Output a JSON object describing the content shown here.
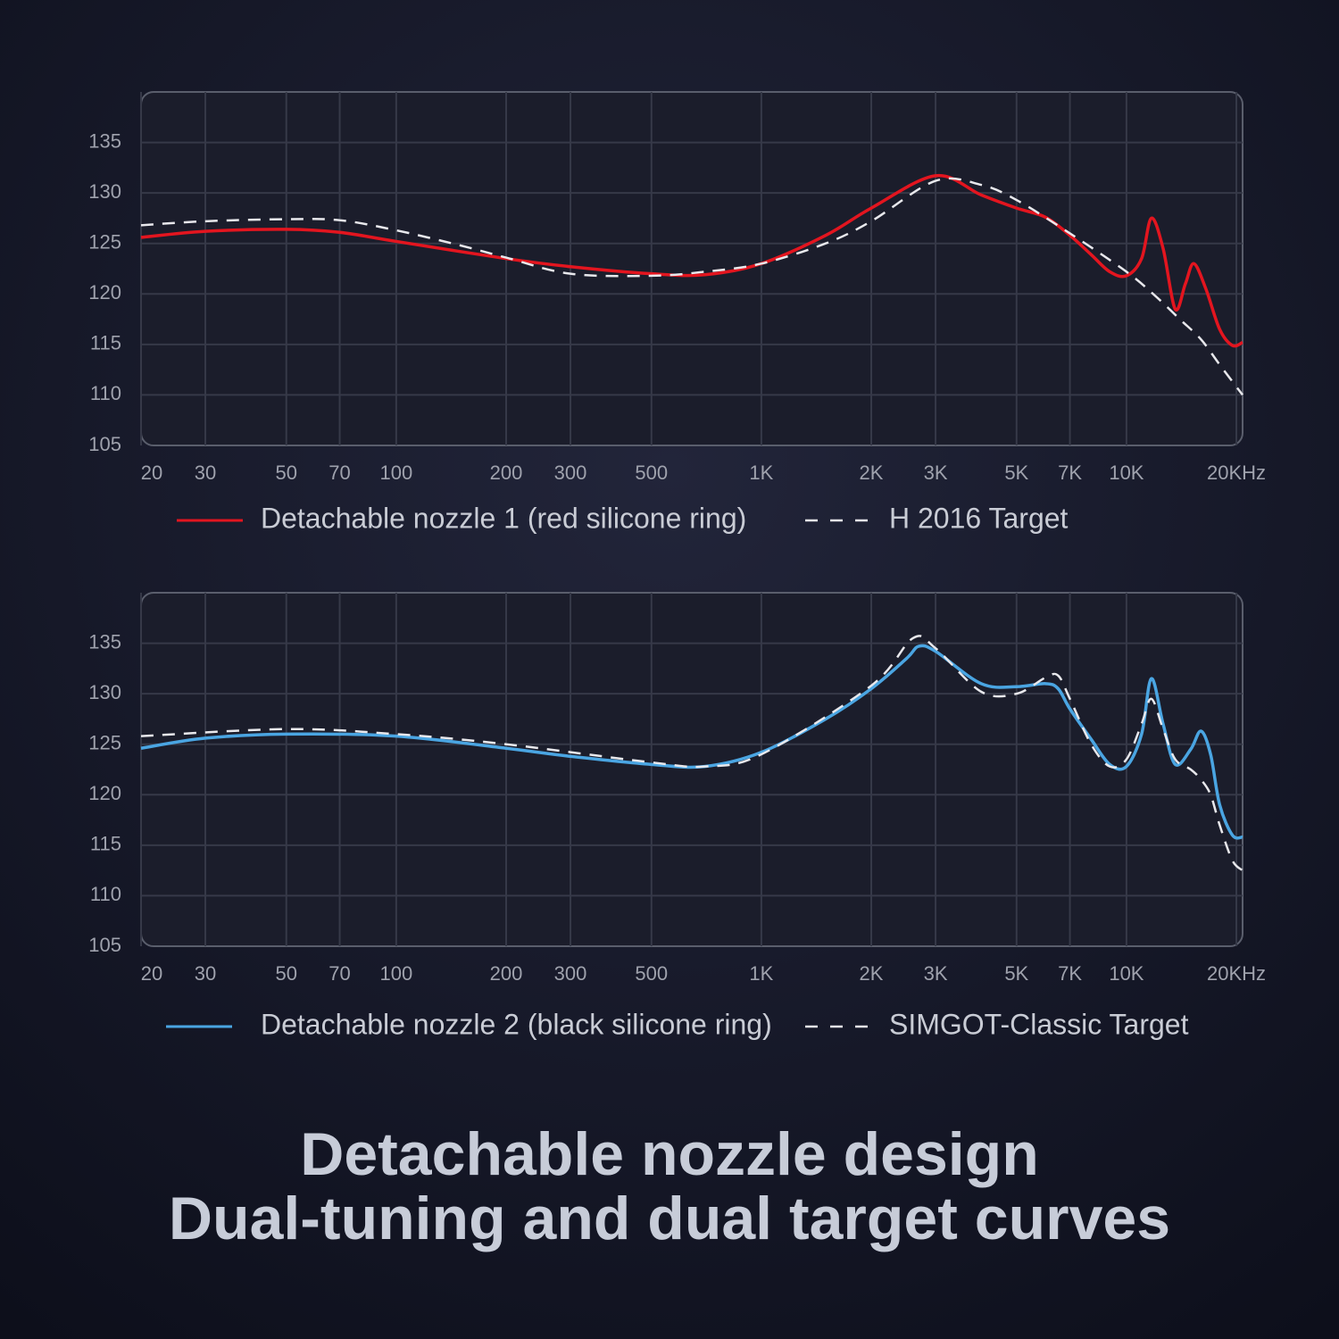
{
  "chart_data": [
    {
      "type": "line",
      "xscale": "log",
      "xlim": [
        20,
        20800
      ],
      "ylim": [
        105,
        140
      ],
      "grid": true,
      "xticks": [
        20,
        30,
        50,
        70,
        100,
        200,
        300,
        500,
        {
          "value": 1000,
          "label": "1K"
        },
        {
          "value": 2000,
          "label": "2K"
        },
        {
          "value": 3000,
          "label": "3K"
        },
        {
          "value": 5000,
          "label": "5K"
        },
        {
          "value": 7000,
          "label": "7K"
        },
        {
          "value": 10000,
          "label": "10K"
        },
        {
          "value": 20000,
          "label": "20KHz"
        }
      ],
      "yticks": [
        105,
        110,
        115,
        120,
        125,
        130,
        135
      ],
      "series": [
        {
          "name": "Detachable nozzle 1 (red silicone ring)",
          "color": "#e3151f",
          "style": "solid",
          "x": [
            20,
            30,
            50,
            70,
            100,
            200,
            300,
            500,
            700,
            1000,
            1500,
            2000,
            3000,
            4000,
            5000,
            6000,
            7000,
            8000,
            9000,
            10000,
            11000,
            11700,
            12600,
            13600,
            14500,
            15300,
            16500,
            18000,
            19500,
            20800
          ],
          "values": [
            125.6,
            126.2,
            126.4,
            126.1,
            125.2,
            123.5,
            122.7,
            122.0,
            121.9,
            123.0,
            125.8,
            128.5,
            131.7,
            129.8,
            128.5,
            127.6,
            125.8,
            123.9,
            122.2,
            121.8,
            123.5,
            127.5,
            124.5,
            118.5,
            121.0,
            123.0,
            120.5,
            116.5,
            114.9,
            115.2
          ]
        },
        {
          "name": "H 2016 Target",
          "color": "#e8e8ec",
          "style": "dashed",
          "x": [
            20,
            30,
            50,
            70,
            100,
            150,
            200,
            300,
            500,
            700,
            1000,
            1500,
            2000,
            3000,
            4000,
            5000,
            7000,
            10000,
            12000,
            14000,
            16000,
            18000,
            20800
          ],
          "values": [
            126.8,
            127.2,
            127.4,
            127.3,
            126.3,
            124.8,
            123.6,
            122.0,
            121.8,
            122.2,
            123.0,
            125.0,
            127.2,
            131.2,
            130.8,
            129.3,
            126.0,
            122.2,
            119.8,
            117.5,
            115.5,
            113.0,
            110.0
          ]
        }
      ]
    },
    {
      "type": "line",
      "xscale": "log",
      "xlim": [
        20,
        20800
      ],
      "ylim": [
        105,
        140
      ],
      "grid": true,
      "xticks": [
        20,
        30,
        50,
        70,
        100,
        200,
        300,
        500,
        {
          "value": 1000,
          "label": "1K"
        },
        {
          "value": 2000,
          "label": "2K"
        },
        {
          "value": 3000,
          "label": "3K"
        },
        {
          "value": 5000,
          "label": "5K"
        },
        {
          "value": 7000,
          "label": "7K"
        },
        {
          "value": 10000,
          "label": "10K"
        },
        {
          "value": 20000,
          "label": "20KHz"
        }
      ],
      "yticks": [
        105,
        110,
        115,
        120,
        125,
        130,
        135
      ],
      "series": [
        {
          "name": "Detachable nozzle 2 (black silicone ring)",
          "color": "#4aa5e2",
          "style": "solid",
          "x": [
            20,
            30,
            50,
            100,
            200,
            300,
            500,
            700,
            1000,
            1500,
            2000,
            2500,
            2700,
            3000,
            4000,
            5000,
            6000,
            6500,
            7000,
            8000,
            9000,
            10000,
            11000,
            11700,
            12600,
            13600,
            15000,
            16000,
            17000,
            18000,
            19500,
            20800
          ],
          "values": [
            124.6,
            125.6,
            126.0,
            125.8,
            124.6,
            123.8,
            123.0,
            122.8,
            124.2,
            127.5,
            130.5,
            133.5,
            134.7,
            134.2,
            131.0,
            130.7,
            131.0,
            130.5,
            128.5,
            125.5,
            123.0,
            122.8,
            126.0,
            131.5,
            127.0,
            123.0,
            124.5,
            126.3,
            124.0,
            119.0,
            116.0,
            115.8
          ]
        },
        {
          "name": "SIMGOT-Classic Target",
          "color": "#e8e8ec",
          "style": "dashed",
          "x": [
            20,
            50,
            100,
            200,
            500,
            700,
            1000,
            2000,
            2600,
            3000,
            4000,
            5000,
            6000,
            6500,
            7000,
            8000,
            9000,
            10000,
            11000,
            11700,
            12600,
            13600,
            15000,
            16000,
            17000,
            18000,
            19500,
            20800
          ],
          "values": [
            125.8,
            126.5,
            126.0,
            125.0,
            123.2,
            122.8,
            124.0,
            130.8,
            135.5,
            134.5,
            130.2,
            130.0,
            131.6,
            131.8,
            129.5,
            125.0,
            122.8,
            123.5,
            127.0,
            129.5,
            126.5,
            123.5,
            122.5,
            121.5,
            120.0,
            117.0,
            113.5,
            112.5
          ]
        }
      ]
    }
  ],
  "headline": [
    "Detachable nozzle design",
    "Dual-tuning and dual target curves"
  ]
}
